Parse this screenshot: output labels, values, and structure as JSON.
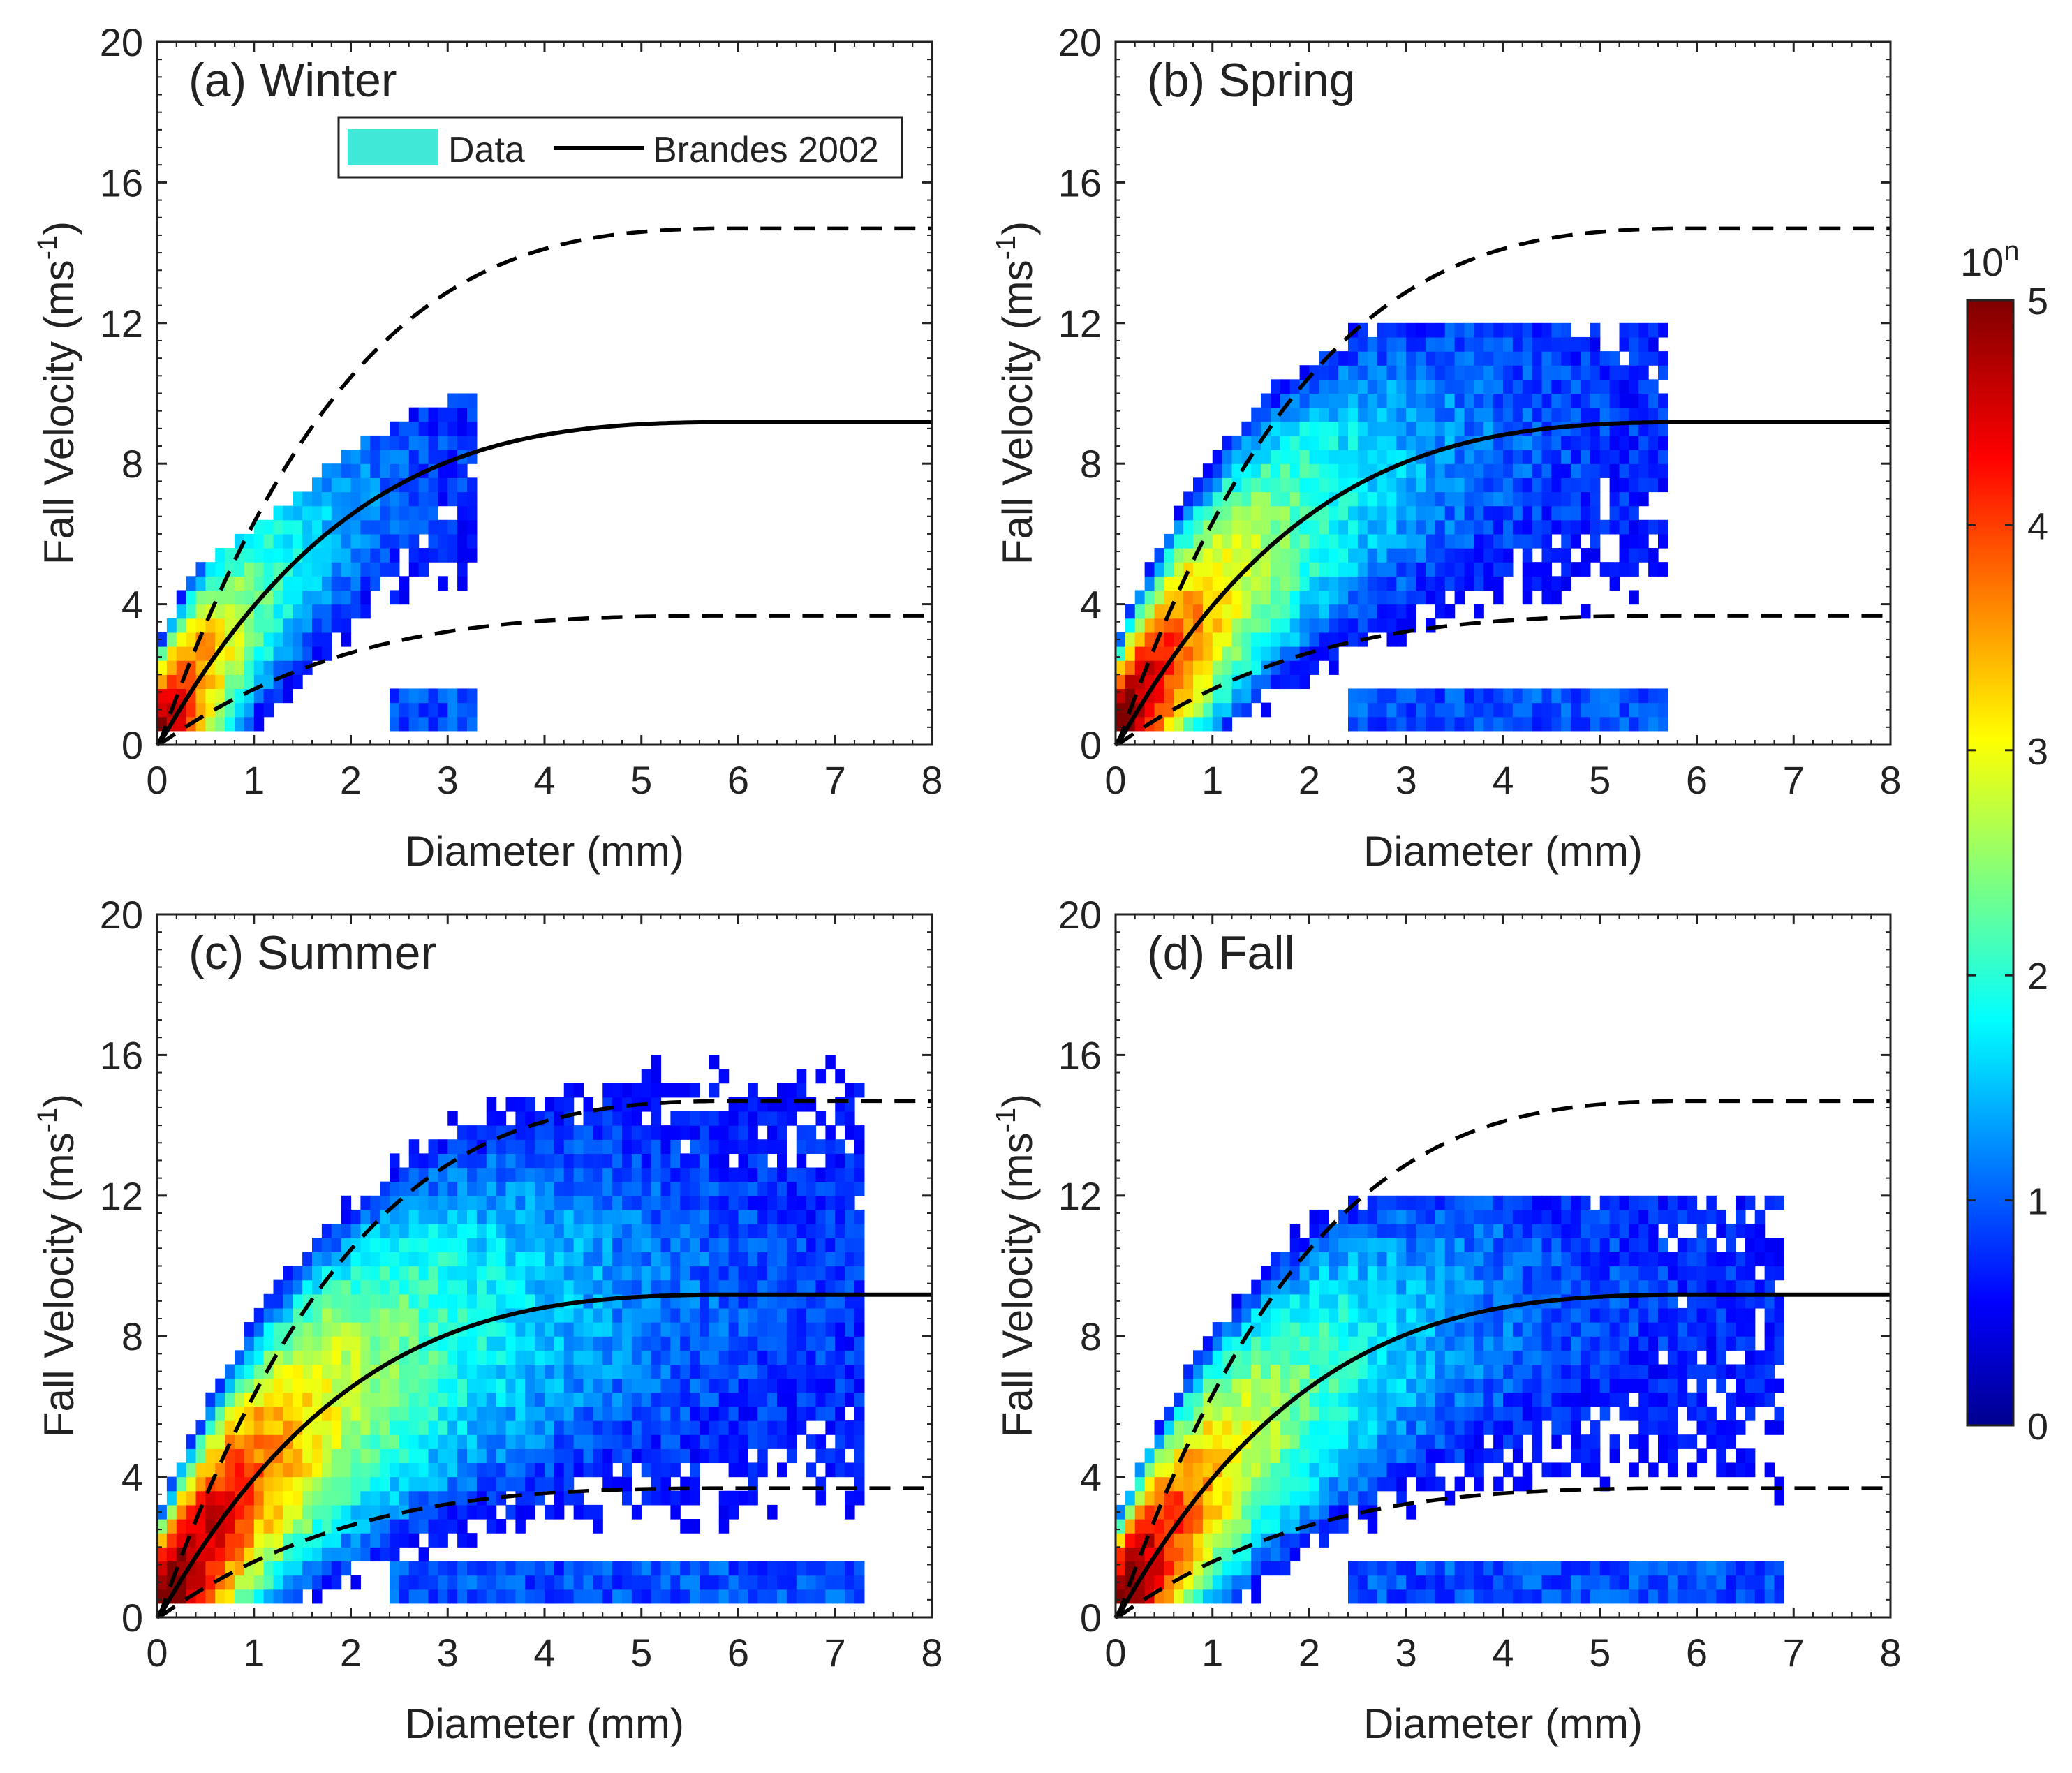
{
  "chart_data": [
    {
      "type": "heatmap",
      "title": "(a) Winter",
      "xlabel": "Diameter (mm)",
      "ylabel_main": "Fall Velocity (ms",
      "ylabel_sup": "-1",
      "ylabel_end": ")",
      "xlim": [
        0,
        8
      ],
      "ylim": [
        0,
        20
      ],
      "xticks": [
        0,
        1,
        2,
        3,
        4,
        5,
        6,
        7,
        8
      ],
      "yticks": [
        0,
        4,
        8,
        12,
        16,
        20
      ],
      "density": {
        "peak_d": 0.7,
        "amp": 4.8,
        "spread_d": 1.1,
        "max_d": 3.3,
        "vhigh": 7.4,
        "vlow": 0.4
      }
    },
    {
      "type": "heatmap",
      "title": "(b) Spring",
      "xlabel": "Diameter (mm)",
      "ylabel_main": "Fall Velocity (ms",
      "ylabel_sup": "-1",
      "ylabel_end": ")",
      "xlim": [
        0,
        8
      ],
      "ylim": [
        0,
        20
      ],
      "xticks": [
        0,
        1,
        2,
        3,
        4,
        5,
        6,
        7,
        8
      ],
      "yticks": [
        0,
        4,
        8,
        12,
        16,
        20
      ],
      "density": {
        "peak_d": 0.8,
        "amp": 4.9,
        "spread_d": 1.8,
        "max_d": 5.7,
        "vhigh": 11.5,
        "vlow": 0.5
      }
    },
    {
      "type": "heatmap",
      "title": "(c) Summer",
      "xlabel": "Diameter (mm)",
      "ylabel_main": "Fall Velocity (ms",
      "ylabel_sup": "-1",
      "ylabel_end": ")",
      "xlim": [
        0,
        8
      ],
      "ylim": [
        0,
        20
      ],
      "xticks": [
        0,
        1,
        2,
        3,
        4,
        5,
        6,
        7,
        8
      ],
      "yticks": [
        0,
        4,
        8,
        12,
        16,
        20
      ],
      "density": {
        "peak_d": 0.9,
        "amp": 5.0,
        "spread_d": 2.5,
        "max_d": 7.3,
        "vhigh": 17.5,
        "vlow": 0.5
      }
    },
    {
      "type": "heatmap",
      "title": "(d) Fall",
      "xlabel": "Diameter (mm)",
      "ylabel_main": "Fall Velocity (ms",
      "ylabel_sup": "-1",
      "ylabel_end": ")",
      "xlim": [
        0,
        8
      ],
      "ylim": [
        0,
        20
      ],
      "xticks": [
        0,
        1,
        2,
        3,
        4,
        5,
        6,
        7,
        8
      ],
      "yticks": [
        0,
        4,
        8,
        12,
        16,
        20
      ],
      "density": {
        "peak_d": 0.8,
        "amp": 4.9,
        "spread_d": 1.9,
        "max_d": 6.9,
        "vhigh": 11.5,
        "vlow": 0.5
      }
    }
  ],
  "legend": {
    "data_label": "Data",
    "line_label": "Brandes 2002",
    "data_color": "#40e8d8"
  },
  "colorbar": {
    "label_base": "10",
    "label_exp": "n",
    "min": 0,
    "max": 5,
    "ticks": [
      0,
      1,
      2,
      3,
      4,
      5
    ]
  },
  "curves": {
    "brandes_2002": {
      "name": "Brandes 2002",
      "coeffs": [
        -0.1021,
        4.932,
        -0.9551,
        0.07934,
        -0.002362
      ]
    },
    "upper_bound": {
      "scale": 1.6,
      "style": "dashed"
    },
    "lower_bound": {
      "scale": 0.4,
      "style": "dashed"
    }
  }
}
